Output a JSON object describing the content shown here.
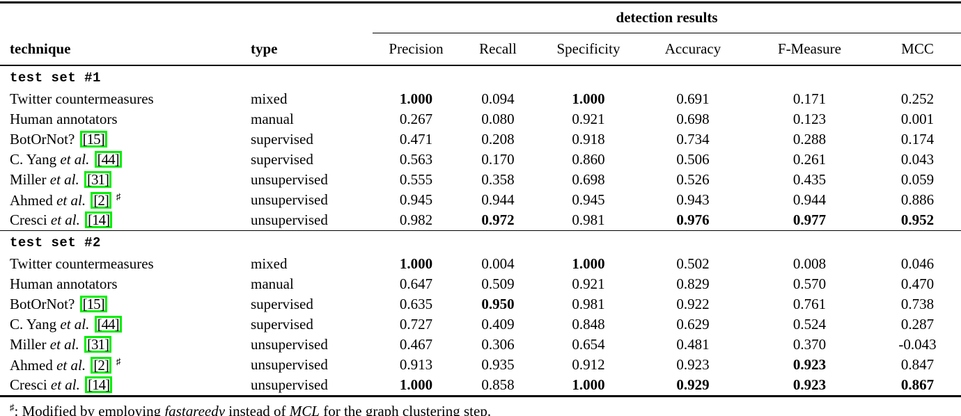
{
  "colors": {
    "citation_box": "#00ee00",
    "text": "#000000",
    "background": "#ffffff"
  },
  "header": {
    "group_label": "detection results",
    "technique": "technique",
    "type": "type",
    "metrics": [
      "Precision",
      "Recall",
      "Specificity",
      "Accuracy",
      "F-Measure",
      "MCC"
    ]
  },
  "sections": [
    {
      "label": "test set #1",
      "rows": [
        {
          "name": "Twitter countermeasures",
          "etal": "",
          "citation": "",
          "flag": "",
          "type": "mixed",
          "values": [
            {
              "t": "1.000",
              "bold": true
            },
            {
              "t": "0.094",
              "bold": false
            },
            {
              "t": "1.000",
              "bold": true
            },
            {
              "t": "0.691",
              "bold": false
            },
            {
              "t": "0.171",
              "bold": false
            },
            {
              "t": "0.252",
              "bold": false
            }
          ]
        },
        {
          "name": "Human annotators",
          "etal": "",
          "citation": "",
          "flag": "",
          "type": "manual",
          "values": [
            {
              "t": "0.267",
              "bold": false
            },
            {
              "t": "0.080",
              "bold": false
            },
            {
              "t": "0.921",
              "bold": false
            },
            {
              "t": "0.698",
              "bold": false
            },
            {
              "t": "0.123",
              "bold": false
            },
            {
              "t": "0.001",
              "bold": false
            }
          ]
        },
        {
          "name": "BotOrNot?",
          "etal": "",
          "citation": "[15]",
          "flag": "",
          "type": "supervised",
          "values": [
            {
              "t": "0.471",
              "bold": false
            },
            {
              "t": "0.208",
              "bold": false
            },
            {
              "t": "0.918",
              "bold": false
            },
            {
              "t": "0.734",
              "bold": false
            },
            {
              "t": "0.288",
              "bold": false
            },
            {
              "t": "0.174",
              "bold": false
            }
          ]
        },
        {
          "name": "C. Yang",
          "etal": "et al.",
          "citation": "[44]",
          "flag": "",
          "type": "supervised",
          "values": [
            {
              "t": "0.563",
              "bold": false
            },
            {
              "t": "0.170",
              "bold": false
            },
            {
              "t": "0.860",
              "bold": false
            },
            {
              "t": "0.506",
              "bold": false
            },
            {
              "t": "0.261",
              "bold": false
            },
            {
              "t": "0.043",
              "bold": false
            }
          ]
        },
        {
          "name": "Miller",
          "etal": "et al.",
          "citation": "[31]",
          "flag": "",
          "type": "unsupervised",
          "values": [
            {
              "t": "0.555",
              "bold": false
            },
            {
              "t": "0.358",
              "bold": false
            },
            {
              "t": "0.698",
              "bold": false
            },
            {
              "t": "0.526",
              "bold": false
            },
            {
              "t": "0.435",
              "bold": false
            },
            {
              "t": "0.059",
              "bold": false
            }
          ]
        },
        {
          "name": "Ahmed",
          "etal": "et al.",
          "citation": "[2]",
          "flag": "♯",
          "type": "unsupervised",
          "values": [
            {
              "t": "0.945",
              "bold": false
            },
            {
              "t": "0.944",
              "bold": false
            },
            {
              "t": "0.945",
              "bold": false
            },
            {
              "t": "0.943",
              "bold": false
            },
            {
              "t": "0.944",
              "bold": false
            },
            {
              "t": "0.886",
              "bold": false
            }
          ]
        },
        {
          "name": "Cresci",
          "etal": "et al.",
          "citation": "[14]",
          "flag": "",
          "type": "unsupervised",
          "values": [
            {
              "t": "0.982",
              "bold": false
            },
            {
              "t": "0.972",
              "bold": true
            },
            {
              "t": "0.981",
              "bold": false
            },
            {
              "t": "0.976",
              "bold": true
            },
            {
              "t": "0.977",
              "bold": true
            },
            {
              "t": "0.952",
              "bold": true
            }
          ]
        }
      ]
    },
    {
      "label": "test set #2",
      "rows": [
        {
          "name": "Twitter countermeasures",
          "etal": "",
          "citation": "",
          "flag": "",
          "type": "mixed",
          "values": [
            {
              "t": "1.000",
              "bold": true
            },
            {
              "t": "0.004",
              "bold": false
            },
            {
              "t": "1.000",
              "bold": true
            },
            {
              "t": "0.502",
              "bold": false
            },
            {
              "t": "0.008",
              "bold": false
            },
            {
              "t": "0.046",
              "bold": false
            }
          ]
        },
        {
          "name": "Human annotators",
          "etal": "",
          "citation": "",
          "flag": "",
          "type": "manual",
          "values": [
            {
              "t": "0.647",
              "bold": false
            },
            {
              "t": "0.509",
              "bold": false
            },
            {
              "t": "0.921",
              "bold": false
            },
            {
              "t": "0.829",
              "bold": false
            },
            {
              "t": "0.570",
              "bold": false
            },
            {
              "t": "0.470",
              "bold": false
            }
          ]
        },
        {
          "name": "BotOrNot?",
          "etal": "",
          "citation": "[15]",
          "flag": "",
          "type": "supervised",
          "values": [
            {
              "t": "0.635",
              "bold": false
            },
            {
              "t": "0.950",
              "bold": true
            },
            {
              "t": "0.981",
              "bold": false
            },
            {
              "t": "0.922",
              "bold": false
            },
            {
              "t": "0.761",
              "bold": false
            },
            {
              "t": "0.738",
              "bold": false
            }
          ]
        },
        {
          "name": "C. Yang",
          "etal": "et al.",
          "citation": "[44]",
          "flag": "",
          "type": "supervised",
          "values": [
            {
              "t": "0.727",
              "bold": false
            },
            {
              "t": "0.409",
              "bold": false
            },
            {
              "t": "0.848",
              "bold": false
            },
            {
              "t": "0.629",
              "bold": false
            },
            {
              "t": "0.524",
              "bold": false
            },
            {
              "t": "0.287",
              "bold": false
            }
          ]
        },
        {
          "name": "Miller",
          "etal": "et al.",
          "citation": "[31]",
          "flag": "",
          "type": "unsupervised",
          "values": [
            {
              "t": "0.467",
              "bold": false
            },
            {
              "t": "0.306",
              "bold": false
            },
            {
              "t": "0.654",
              "bold": false
            },
            {
              "t": "0.481",
              "bold": false
            },
            {
              "t": "0.370",
              "bold": false
            },
            {
              "t": "-0.043",
              "bold": false
            }
          ]
        },
        {
          "name": "Ahmed",
          "etal": "et al.",
          "citation": "[2]",
          "flag": "♯",
          "type": "unsupervised",
          "values": [
            {
              "t": "0.913",
              "bold": false
            },
            {
              "t": "0.935",
              "bold": false
            },
            {
              "t": "0.912",
              "bold": false
            },
            {
              "t": "0.923",
              "bold": false
            },
            {
              "t": "0.923",
              "bold": true
            },
            {
              "t": "0.847",
              "bold": false
            }
          ]
        },
        {
          "name": "Cresci",
          "etal": "et al.",
          "citation": "[14]",
          "flag": "",
          "type": "unsupervised",
          "values": [
            {
              "t": "1.000",
              "bold": true
            },
            {
              "t": "0.858",
              "bold": false
            },
            {
              "t": "1.000",
              "bold": true
            },
            {
              "t": "0.929",
              "bold": true
            },
            {
              "t": "0.923",
              "bold": true
            },
            {
              "t": "0.867",
              "bold": true
            }
          ]
        }
      ]
    }
  ],
  "footnote": {
    "symbol": "♯",
    "pre": ": Modified by employing ",
    "term1": "fastgreedy",
    "mid": " instead of ",
    "term2": "MCL",
    "post": " for the graph clustering step."
  }
}
